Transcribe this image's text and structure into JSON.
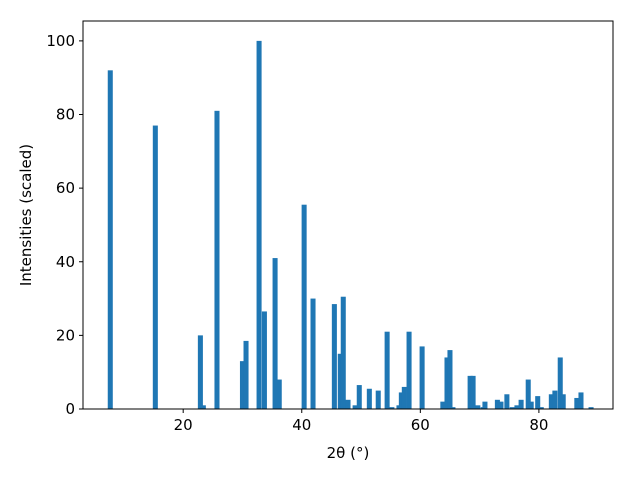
{
  "chart_data": {
    "type": "bar",
    "x": [
      7.7,
      15.3,
      22.9,
      23.4,
      25.7,
      30.0,
      30.6,
      32.8,
      33.7,
      35.5,
      36.2,
      40.4,
      41.9,
      45.5,
      46.5,
      47.0,
      47.8,
      49.0,
      49.7,
      51.4,
      52.9,
      54.4,
      55.2,
      56.4,
      56.8,
      57.3,
      58.1,
      60.3,
      63.8,
      64.5,
      65.0,
      65.5,
      68.4,
      68.9,
      69.7,
      70.6,
      70.9,
      73.0,
      73.6,
      74.6,
      75.5,
      76.3,
      77.0,
      78.2,
      78.7,
      79.8,
      80.4,
      82.1,
      82.7,
      83.6,
      84.1,
      86.4,
      87.1,
      88.8
    ],
    "values": [
      92,
      77,
      20,
      1,
      81,
      13,
      18.5,
      100,
      26.5,
      41,
      8,
      55.5,
      30,
      28.5,
      15,
      30.5,
      2.5,
      1,
      6.5,
      5.5,
      5,
      21,
      0.5,
      1,
      4.5,
      6,
      21,
      17,
      2,
      14,
      16,
      0.5,
      9,
      9,
      1,
      0.5,
      2,
      2.5,
      2,
      4,
      0.5,
      1,
      2.5,
      8,
      2,
      3.5,
      0.5,
      4,
      5,
      14,
      4,
      3,
      4.5,
      0.5
    ],
    "color": "#1f77b4",
    "xlabel": "2θ (°)",
    "ylabel": "Intensities (scaled)",
    "xlim": [
      3.1,
      92.5
    ],
    "xticks": [
      20,
      40,
      60,
      80
    ],
    "ylim": [
      0,
      105.4
    ],
    "yticks": [
      0,
      20,
      40,
      60,
      80,
      100
    ]
  }
}
